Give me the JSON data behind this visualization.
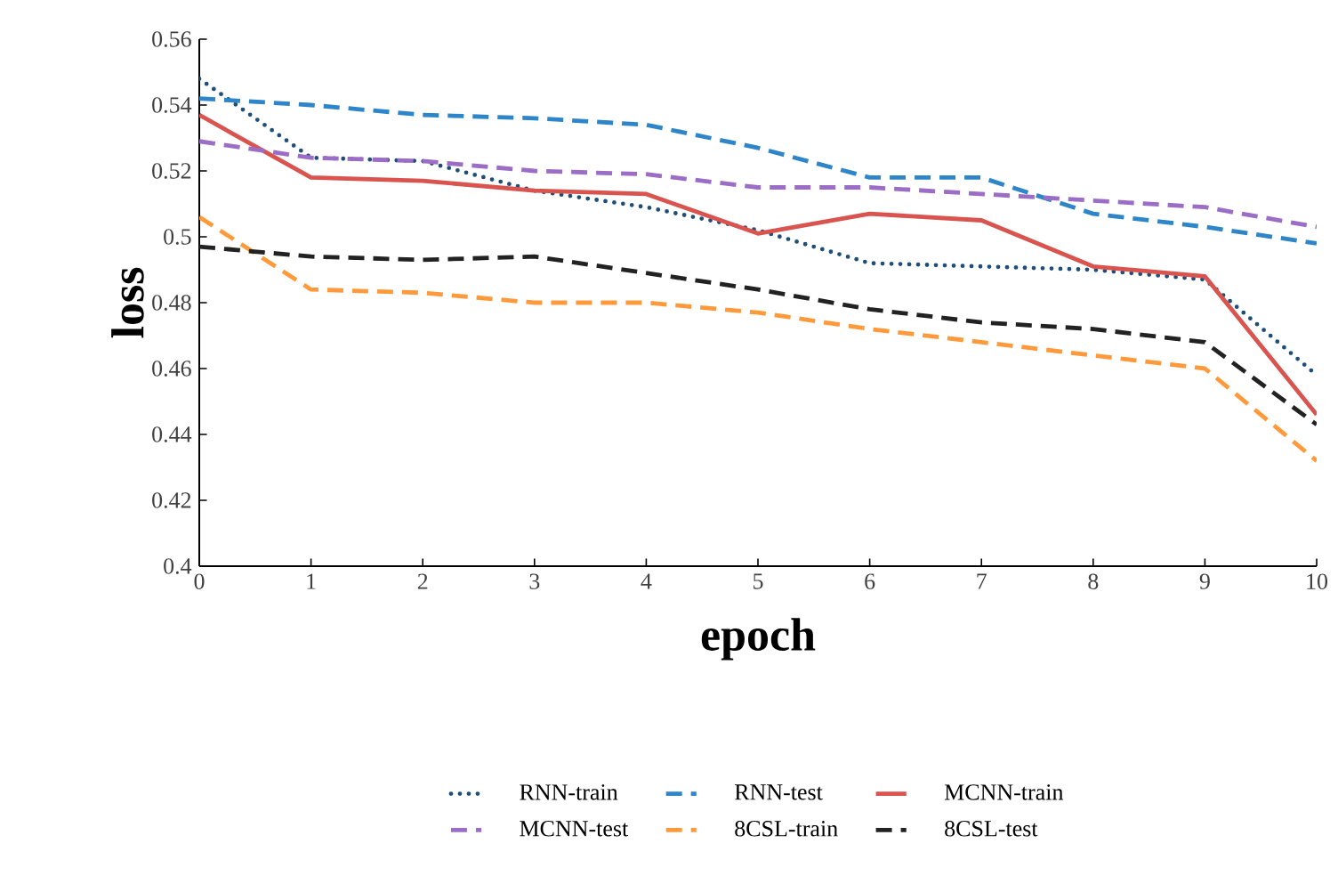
{
  "chart_data": {
    "type": "line",
    "xlabel": "epoch",
    "ylabel": "loss",
    "x": [
      0,
      1,
      2,
      3,
      4,
      5,
      6,
      7,
      8,
      9,
      10
    ],
    "xlim": [
      0,
      10
    ],
    "xticks": [
      0,
      1,
      2,
      3,
      4,
      5,
      6,
      7,
      8,
      9,
      10
    ],
    "ylim": [
      0.4,
      0.56
    ],
    "yticks": [
      0.4,
      0.42,
      0.44,
      0.46,
      0.48,
      0.5,
      0.52,
      0.54,
      0.56
    ],
    "grid": false,
    "legend": "bottom",
    "marker": "none",
    "series": [
      {
        "name": "RNN-train",
        "color": "#1f4e79",
        "line_style": "dotted",
        "values": [
          0.548,
          0.524,
          0.523,
          0.514,
          0.509,
          0.502,
          0.492,
          0.491,
          0.49,
          0.487,
          0.458
        ]
      },
      {
        "name": "RNN-test",
        "color": "#2e86c8",
        "line_style": "dashed",
        "values": [
          0.542,
          0.54,
          0.537,
          0.536,
          0.534,
          0.527,
          0.518,
          0.518,
          0.507,
          0.503,
          0.498
        ]
      },
      {
        "name": "MCNN-train",
        "color": "#d9534f",
        "line_style": "solid",
        "values": [
          0.537,
          0.518,
          0.517,
          0.514,
          0.513,
          0.501,
          0.507,
          0.505,
          0.491,
          0.488,
          0.446
        ]
      },
      {
        "name": "MCNN-test",
        "color": "#9b6dc6",
        "line_style": "dashed",
        "values": [
          0.529,
          0.524,
          0.523,
          0.52,
          0.519,
          0.515,
          0.515,
          0.513,
          0.511,
          0.509,
          0.503
        ]
      },
      {
        "name": "8CSL-train",
        "color": "#ff9a3c",
        "line_style": "dashed",
        "values": [
          0.506,
          0.484,
          0.483,
          0.48,
          0.48,
          0.477,
          0.472,
          0.468,
          0.464,
          0.46,
          0.432
        ]
      },
      {
        "name": "8CSL-test",
        "color": "#222222",
        "line_style": "dashed",
        "values": [
          0.497,
          0.494,
          0.493,
          0.494,
          0.489,
          0.484,
          0.478,
          0.474,
          0.472,
          0.468,
          0.443
        ]
      }
    ]
  }
}
